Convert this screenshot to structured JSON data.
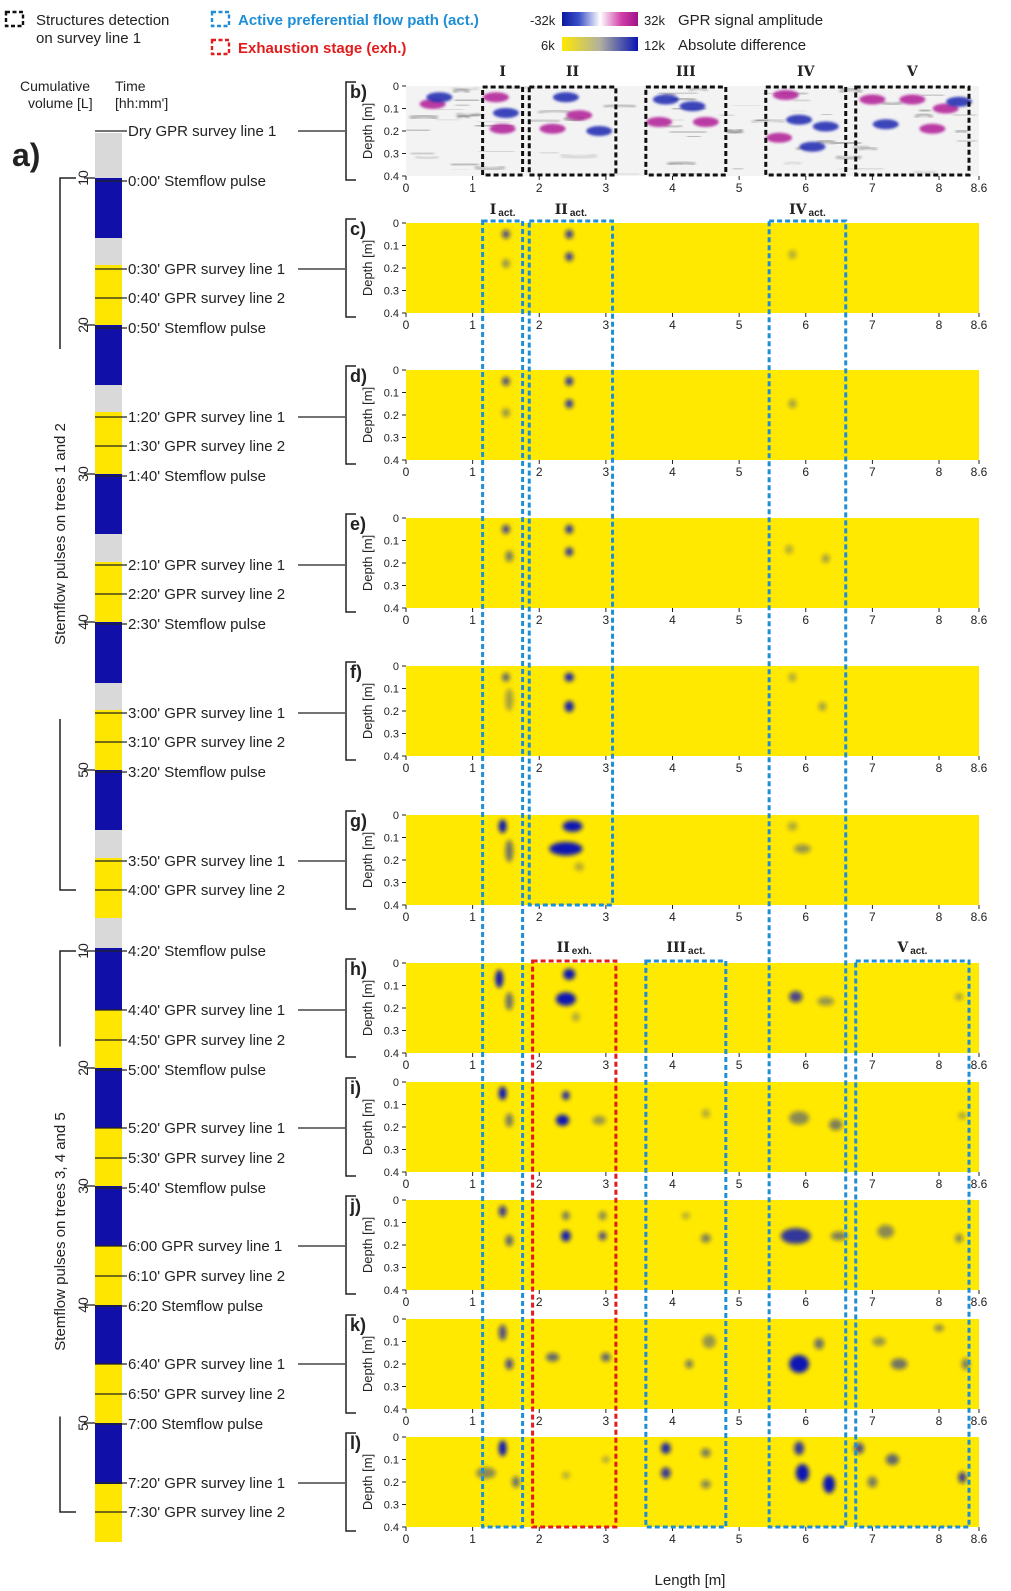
{
  "legend": {
    "structures_line1": "Structures detection",
    "structures_line2": "on survey line 1",
    "active_label": "Active preferential flow path (act.)",
    "exhaustion_label": "Exhaustion stage (exh.)",
    "gpr_min": "-32k",
    "gpr_max": "32k",
    "gpr_label": "GPR signal amplitude",
    "diff_min": "6k",
    "diff_max": "12k",
    "diff_label": "Absolute difference"
  },
  "timeline": {
    "panel_label": "a)",
    "cumvol_header_1": "Cumulative",
    "cumvol_header_2": "volume [L]",
    "time_header_1": "Time",
    "time_header_2": "[hh:mm']",
    "group1_label": "Stemflow pulses on trees 1 and 2",
    "group2_label": "Stemflow pulses on trees 3, 4 and 5",
    "group1_ticks": [
      "10",
      "20",
      "30",
      "40",
      "50"
    ],
    "group2_ticks": [
      "10",
      "20",
      "30",
      "40",
      "50"
    ],
    "events": [
      {
        "label": "Dry GPR survey line 1",
        "kind": "survey",
        "connector": true
      },
      {
        "label": "0:00' Stemflow pulse",
        "kind": "pulse"
      },
      {
        "label": "0:30' GPR survey line 1",
        "kind": "survey",
        "connector": true
      },
      {
        "label": "0:40' GPR survey line 2",
        "kind": "survey"
      },
      {
        "label": "0:50' Stemflow pulse",
        "kind": "pulse"
      },
      {
        "label": "1:20' GPR survey line 1",
        "kind": "survey",
        "connector": true
      },
      {
        "label": "1:30' GPR survey line 2",
        "kind": "survey"
      },
      {
        "label": "1:40' Stemflow pulse",
        "kind": "pulse"
      },
      {
        "label": "2:10' GPR survey line 1",
        "kind": "survey",
        "connector": true
      },
      {
        "label": "2:20' GPR survey line 2",
        "kind": "survey"
      },
      {
        "label": "2:30' Stemflow pulse",
        "kind": "pulse"
      },
      {
        "label": "3:00' GPR survey line 1",
        "kind": "survey",
        "connector": true
      },
      {
        "label": "3:10' GPR survey line 2",
        "kind": "survey"
      },
      {
        "label": "3:20' Stemflow pulse",
        "kind": "pulse"
      },
      {
        "label": "3:50' GPR survey line 1",
        "kind": "survey",
        "connector": true
      },
      {
        "label": "4:00' GPR survey line 2",
        "kind": "survey"
      },
      {
        "label": "4:20' Stemflow pulse",
        "kind": "pulse"
      },
      {
        "label": "4:40' GPR survey line 1",
        "kind": "survey",
        "connector": true
      },
      {
        "label": "4:50' GPR survey line 2",
        "kind": "survey"
      },
      {
        "label": "5:00' Stemflow pulse",
        "kind": "pulse"
      },
      {
        "label": "5:20' GPR survey line 1",
        "kind": "survey",
        "connector": true
      },
      {
        "label": "5:30' GPR survey line 2",
        "kind": "survey"
      },
      {
        "label": "5:40' Stemflow pulse",
        "kind": "pulse"
      },
      {
        "label": "6:00 GPR survey line 1",
        "kind": "survey",
        "connector": true
      },
      {
        "label": "6:10' GPR survey line 2",
        "kind": "survey"
      },
      {
        "label": "6:20 Stemflow pulse",
        "kind": "pulse"
      },
      {
        "label": "6:40' GPR survey line 1",
        "kind": "survey",
        "connector": true
      },
      {
        "label": "6:50' GPR survey line 2",
        "kind": "survey"
      },
      {
        "label": "7:00 Stemflow pulse",
        "kind": "pulse"
      },
      {
        "label": "7:20' GPR survey line 1",
        "kind": "survey",
        "connector": true
      },
      {
        "label": "7:30' GPR survey line 2",
        "kind": "survey"
      }
    ]
  },
  "axes": {
    "ylabel": "Depth [m]",
    "xlabel": "Length [m]",
    "yticks": [
      "0",
      "0.1",
      "0.2",
      "0.3",
      "0.4"
    ],
    "xticks": [
      "0",
      "1",
      "2",
      "3",
      "4",
      "5",
      "6",
      "7",
      "8",
      "8.6"
    ],
    "xmin": 0,
    "xmax": 8.6,
    "ymin": 0,
    "ymax": 0.4
  },
  "colors": {
    "diff_low": "#ffe900",
    "diff_high": "#0a14b4",
    "active_box": "#1e8fd6",
    "exhaust_box": "#e21c1c",
    "pulse_bar": "#1010a8",
    "survey_bar": "#ffe600",
    "gap_bar": "#d9d9d9"
  },
  "structures": [
    {
      "label": "I",
      "x0": 1.15,
      "x1": 1.75
    },
    {
      "label": "II",
      "x0": 1.85,
      "x1": 3.15
    },
    {
      "label": "III",
      "x0": 3.6,
      "x1": 4.8
    },
    {
      "label": "IV",
      "x0": 5.4,
      "x1": 6.6
    },
    {
      "label": "V",
      "x0": 6.75,
      "x1": 8.45
    }
  ],
  "active_paths_1": [
    {
      "label": "I",
      "sub": "act.",
      "x0": 1.15,
      "x1": 1.75
    },
    {
      "label": "II",
      "sub": "act.",
      "x0": 1.85,
      "x1": 3.1
    },
    {
      "label": "IV",
      "sub": "act.",
      "x0": 5.45,
      "x1": 6.6
    }
  ],
  "paths_2": [
    {
      "label": "II",
      "sub": "exh.",
      "x0": 1.9,
      "x1": 3.15,
      "kind": "exh"
    },
    {
      "label": "III",
      "sub": "act.",
      "x0": 3.6,
      "x1": 4.8,
      "kind": "act"
    },
    {
      "label": "V",
      "sub": "act.",
      "x0": 6.75,
      "x1": 8.45,
      "kind": "act"
    }
  ],
  "panels": [
    {
      "id": "b",
      "label": "b)",
      "type": "gpr"
    },
    {
      "id": "c",
      "label": "c)",
      "type": "diff",
      "blobs": [
        [
          1.5,
          0.05,
          0.08,
          0.02,
          0.7
        ],
        [
          2.45,
          0.05,
          0.12,
          0.02,
          0.8
        ],
        [
          1.5,
          0.18,
          0.06,
          0.02,
          0.4
        ],
        [
          2.45,
          0.15,
          0.12,
          0.02,
          0.8
        ],
        [
          5.8,
          0.14,
          0.06,
          0.02,
          0.3
        ]
      ]
    },
    {
      "id": "d",
      "label": "d)",
      "type": "diff",
      "blobs": [
        [
          1.5,
          0.05,
          0.08,
          0.02,
          0.7
        ],
        [
          2.45,
          0.05,
          0.12,
          0.02,
          0.85
        ],
        [
          1.5,
          0.19,
          0.06,
          0.02,
          0.4
        ],
        [
          2.45,
          0.15,
          0.12,
          0.02,
          0.85
        ],
        [
          5.8,
          0.15,
          0.06,
          0.02,
          0.35
        ]
      ]
    },
    {
      "id": "e",
      "label": "e)",
      "type": "diff",
      "blobs": [
        [
          1.5,
          0.05,
          0.08,
          0.02,
          0.75
        ],
        [
          2.45,
          0.05,
          0.12,
          0.02,
          0.85
        ],
        [
          1.55,
          0.17,
          0.08,
          0.025,
          0.5
        ],
        [
          2.45,
          0.15,
          0.12,
          0.02,
          0.85
        ],
        [
          5.75,
          0.14,
          0.06,
          0.02,
          0.3
        ],
        [
          6.3,
          0.18,
          0.08,
          0.02,
          0.35
        ]
      ]
    },
    {
      "id": "f",
      "label": "f)",
      "type": "diff",
      "blobs": [
        [
          1.5,
          0.05,
          0.08,
          0.02,
          0.6
        ],
        [
          1.55,
          0.15,
          0.1,
          0.05,
          0.35
        ],
        [
          2.45,
          0.05,
          0.14,
          0.02,
          0.95
        ],
        [
          2.45,
          0.18,
          0.14,
          0.025,
          0.95
        ],
        [
          5.8,
          0.05,
          0.04,
          0.02,
          0.3
        ],
        [
          6.25,
          0.18,
          0.08,
          0.02,
          0.35
        ]
      ]
    },
    {
      "id": "g",
      "label": "g)",
      "type": "diff",
      "blobs": [
        [
          1.45,
          0.05,
          0.12,
          0.03,
          1.0
        ],
        [
          1.55,
          0.16,
          0.12,
          0.05,
          0.55
        ],
        [
          2.5,
          0.05,
          0.3,
          0.025,
          1.0
        ],
        [
          2.4,
          0.15,
          0.5,
          0.03,
          1.0
        ],
        [
          5.8,
          0.05,
          0.15,
          0.02,
          0.3
        ],
        [
          5.95,
          0.15,
          0.25,
          0.02,
          0.4
        ],
        [
          2.6,
          0.23,
          0.15,
          0.02,
          0.25
        ]
      ]
    },
    {
      "id": "h",
      "label": "h)",
      "type": "diff",
      "blobs": [
        [
          1.4,
          0.07,
          0.12,
          0.04,
          1.0
        ],
        [
          1.55,
          0.17,
          0.08,
          0.04,
          0.55
        ],
        [
          2.45,
          0.05,
          0.18,
          0.025,
          1.0
        ],
        [
          2.4,
          0.16,
          0.3,
          0.03,
          1.0
        ],
        [
          2.55,
          0.24,
          0.12,
          0.02,
          0.3
        ],
        [
          5.85,
          0.15,
          0.2,
          0.025,
          0.75
        ],
        [
          6.3,
          0.17,
          0.25,
          0.02,
          0.4
        ],
        [
          8.3,
          0.15,
          0.1,
          0.015,
          0.35
        ]
      ]
    },
    {
      "id": "i",
      "label": "i)",
      "type": "diff",
      "blobs": [
        [
          1.45,
          0.05,
          0.1,
          0.03,
          1.0
        ],
        [
          1.55,
          0.17,
          0.1,
          0.03,
          0.5
        ],
        [
          2.4,
          0.06,
          0.12,
          0.02,
          0.9
        ],
        [
          2.35,
          0.17,
          0.2,
          0.025,
          1.0
        ],
        [
          2.9,
          0.17,
          0.2,
          0.02,
          0.4
        ],
        [
          4.5,
          0.14,
          0.08,
          0.02,
          0.3
        ],
        [
          5.9,
          0.16,
          0.3,
          0.03,
          0.45
        ],
        [
          6.45,
          0.19,
          0.2,
          0.025,
          0.5
        ],
        [
          8.35,
          0.15,
          0.08,
          0.015,
          0.35
        ]
      ]
    },
    {
      "id": "j",
      "label": "j)",
      "type": "diff",
      "blobs": [
        [
          1.45,
          0.05,
          0.1,
          0.025,
          0.8
        ],
        [
          1.55,
          0.18,
          0.1,
          0.025,
          0.6
        ],
        [
          2.4,
          0.07,
          0.1,
          0.02,
          0.5
        ],
        [
          2.4,
          0.16,
          0.15,
          0.025,
          0.95
        ],
        [
          2.95,
          0.16,
          0.12,
          0.02,
          0.7
        ],
        [
          2.95,
          0.07,
          0.08,
          0.02,
          0.45
        ],
        [
          4.5,
          0.17,
          0.15,
          0.02,
          0.5
        ],
        [
          4.2,
          0.07,
          0.08,
          0.015,
          0.3
        ],
        [
          5.85,
          0.16,
          0.45,
          0.035,
          0.85
        ],
        [
          6.5,
          0.16,
          0.25,
          0.02,
          0.5
        ],
        [
          7.2,
          0.14,
          0.25,
          0.03,
          0.45
        ],
        [
          8.3,
          0.17,
          0.08,
          0.02,
          0.45
        ]
      ]
    },
    {
      "id": "k",
      "label": "k)",
      "type": "diff",
      "blobs": [
        [
          1.45,
          0.06,
          0.1,
          0.035,
          0.7
        ],
        [
          1.55,
          0.2,
          0.1,
          0.025,
          0.7
        ],
        [
          2.2,
          0.17,
          0.2,
          0.02,
          0.6
        ],
        [
          3.0,
          0.17,
          0.15,
          0.02,
          0.6
        ],
        [
          4.25,
          0.2,
          0.12,
          0.02,
          0.5
        ],
        [
          4.55,
          0.1,
          0.2,
          0.03,
          0.4
        ],
        [
          5.9,
          0.2,
          0.3,
          0.04,
          1.0
        ],
        [
          6.2,
          0.11,
          0.15,
          0.025,
          0.55
        ],
        [
          7.1,
          0.1,
          0.2,
          0.02,
          0.4
        ],
        [
          7.4,
          0.2,
          0.25,
          0.025,
          0.55
        ],
        [
          8.0,
          0.04,
          0.15,
          0.015,
          0.45
        ],
        [
          8.4,
          0.2,
          0.12,
          0.025,
          0.5
        ]
      ]
    },
    {
      "id": "l",
      "label": "l)",
      "type": "diff",
      "blobs": [
        [
          1.45,
          0.05,
          0.12,
          0.035,
          1.0
        ],
        [
          1.2,
          0.16,
          0.3,
          0.025,
          0.45
        ],
        [
          1.65,
          0.2,
          0.1,
          0.025,
          0.55
        ],
        [
          2.4,
          0.17,
          0.1,
          0.015,
          0.3
        ],
        [
          3.0,
          0.1,
          0.1,
          0.015,
          0.3
        ],
        [
          3.9,
          0.05,
          0.15,
          0.025,
          0.9
        ],
        [
          4.5,
          0.07,
          0.15,
          0.02,
          0.5
        ],
        [
          3.9,
          0.16,
          0.15,
          0.025,
          0.8
        ],
        [
          4.5,
          0.21,
          0.15,
          0.02,
          0.45
        ],
        [
          5.9,
          0.05,
          0.15,
          0.03,
          0.85
        ],
        [
          5.95,
          0.16,
          0.2,
          0.04,
          1.0
        ],
        [
          6.35,
          0.21,
          0.18,
          0.04,
          1.0
        ],
        [
          6.8,
          0.05,
          0.15,
          0.025,
          0.7
        ],
        [
          7.3,
          0.1,
          0.2,
          0.025,
          0.6
        ],
        [
          7.0,
          0.2,
          0.15,
          0.025,
          0.5
        ],
        [
          8.35,
          0.18,
          0.12,
          0.025,
          0.8
        ]
      ]
    }
  ]
}
